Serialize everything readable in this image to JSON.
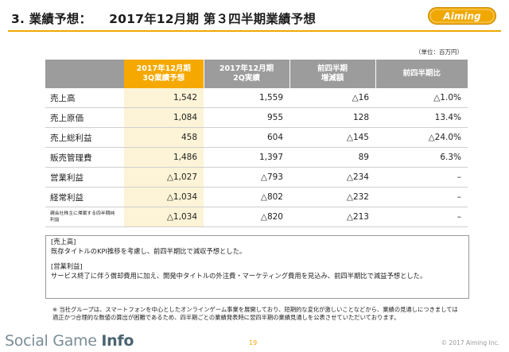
{
  "header": {
    "section": "3. 業績予想：",
    "title": "2017年12月期 第３四半期業績予想"
  },
  "logo": {
    "text": "Aiming",
    "color": "#f0a800"
  },
  "unit_note": "（単位：百万円）",
  "table": {
    "columns": [
      {
        "line1": "2017年12月期",
        "line2": "3Q業績予想"
      },
      {
        "line1": "2017年12月期",
        "line2": "2Q実績"
      },
      {
        "line1": "前四半期",
        "line2": "増減額"
      },
      {
        "line1": "前四半期比",
        "line2": ""
      }
    ],
    "rows": [
      {
        "label": "売上高",
        "values": [
          "1,542",
          "1,559",
          "△16",
          "△1.0%"
        ]
      },
      {
        "label": "売上原価",
        "values": [
          "1,084",
          "955",
          "128",
          "13.4%"
        ]
      },
      {
        "label": "売上総利益",
        "values": [
          "458",
          "604",
          "△145",
          "△24.0%"
        ]
      },
      {
        "label": "販売管理費",
        "values": [
          "1,486",
          "1,397",
          "89",
          "6.3%"
        ]
      },
      {
        "label": "営業利益",
        "values": [
          "△1,027",
          "△793",
          "△234",
          "–"
        ]
      },
      {
        "label": "経常利益",
        "values": [
          "△1,034",
          "△802",
          "△232",
          "–"
        ]
      },
      {
        "label": "親会社株主に帰属する四半期純利益",
        "values": [
          "△1,034",
          "△820",
          "△213",
          "–"
        ]
      }
    ]
  },
  "notes": {
    "sales_heading": "[売上高]",
    "sales_text": "既存タイトルのKPI推移を考慮し、前四半期比で減収予想とした。",
    "op_heading": "[営業利益]",
    "op_text": "サービス終了に伴う償却費用に加え、開発中タイトルの外注費・マーケティング費用を見込み、前四半期比で減益予想とした。"
  },
  "footnote": "※ 当社グループは、スマートフォンを中心としたオンラインゲーム事業を展開しており、短期的な変化が激しいことなどから、業績の見通しにつきましては適正かつ合理的な数値の算出が困難であるため、四半期ごとの業績発表時に翌四半期の業績見通しを公表させていただいております。",
  "watermark": {
    "part1": "Social Game ",
    "part2": "Info"
  },
  "page_number": "19",
  "copyright": "© 2017 Aiming Inc."
}
